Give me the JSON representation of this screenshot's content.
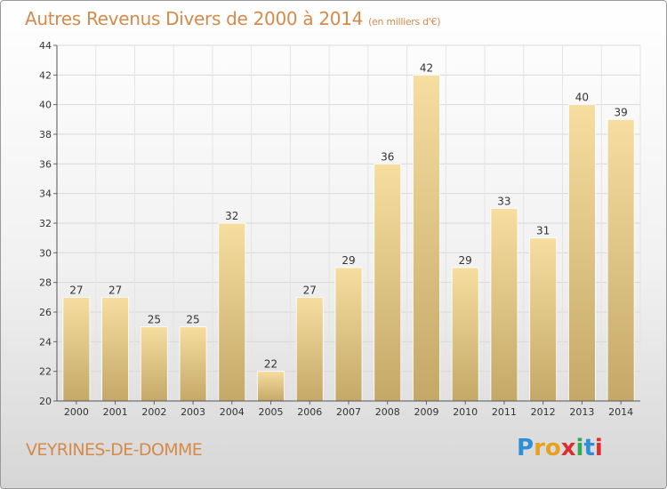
{
  "header": {
    "title": "Autres Revenus Divers de 2000 à 2014",
    "unit": "(en milliers d'€)"
  },
  "footer": {
    "commune": "VEYRINES-DE-DOMME",
    "logo_letters": [
      "P",
      "r",
      "o",
      "x",
      "i",
      "t",
      "i"
    ]
  },
  "chart_data": {
    "type": "bar",
    "title": "Autres Revenus Divers de 2000 à 2014",
    "subtitle": "(en milliers d'€)",
    "categories": [
      "2000",
      "2001",
      "2002",
      "2003",
      "2004",
      "2005",
      "2006",
      "2007",
      "2008",
      "2009",
      "2010",
      "2011",
      "2012",
      "2013",
      "2014"
    ],
    "values": [
      27,
      27,
      25,
      25,
      32,
      22,
      27,
      29,
      36,
      42,
      29,
      33,
      31,
      40,
      39
    ],
    "yticks": [
      20,
      22,
      24,
      26,
      28,
      30,
      32,
      34,
      36,
      38,
      40,
      42,
      44
    ],
    "ylim": [
      20,
      44
    ],
    "grid": true,
    "bar_color": "#f0d08a",
    "bar_color_dark": "#c4a868",
    "title_color": "#d68a4a"
  }
}
